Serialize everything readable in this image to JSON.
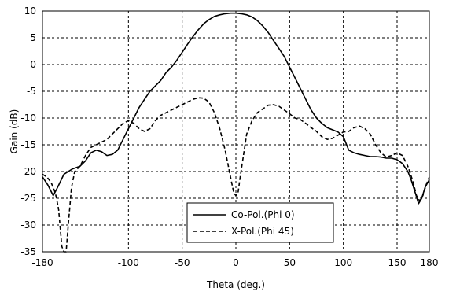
{
  "chart_data": {
    "type": "line",
    "xlabel": "Theta (deg.)",
    "ylabel": "Gain (dB)",
    "xlim": [
      -180,
      180
    ],
    "ylim": [
      -35,
      10
    ],
    "xticks": [
      -180,
      -100,
      -50,
      0,
      50,
      100,
      150,
      180
    ],
    "yticks": [
      10,
      5,
      0,
      -5,
      -10,
      -15,
      -20,
      -25,
      -30,
      -35
    ],
    "xtick_labels": [
      "-180",
      "-100",
      "-50",
      "0",
      "50",
      "100",
      "150",
      "180"
    ],
    "ytick_labels": [
      "10",
      "5",
      "0",
      "-5",
      "-10",
      "-15",
      "-20",
      "-25",
      "-30",
      "-35"
    ],
    "grid": true,
    "legend_position": "bottom-center",
    "series": [
      {
        "name": "Co-Pol.(Phi 0)",
        "style": "solid",
        "color": "#000000",
        "x": [
          -180,
          -175,
          -170,
          -166,
          -160,
          -152,
          -145,
          -140,
          -135,
          -130,
          -125,
          -120,
          -115,
          -110,
          -105,
          -100,
          -95,
          -90,
          -85,
          -80,
          -75,
          -70,
          -65,
          -60,
          -55,
          -50,
          -45,
          -40,
          -35,
          -30,
          -25,
          -20,
          -15,
          -10,
          -5,
          0,
          5,
          10,
          15,
          20,
          25,
          30,
          35,
          40,
          45,
          50,
          55,
          60,
          65,
          70,
          75,
          80,
          85,
          90,
          95,
          100,
          105,
          110,
          115,
          120,
          125,
          130,
          135,
          140,
          145,
          150,
          155,
          160,
          163,
          167,
          170,
          173,
          176,
          180
        ],
        "y": [
          -21,
          -22.5,
          -24.5,
          -23,
          -20.5,
          -19.5,
          -19,
          -18,
          -16.5,
          -16,
          -16.3,
          -17,
          -16.8,
          -16,
          -14,
          -12,
          -10,
          -8,
          -6.5,
          -5,
          -4,
          -3,
          -1.5,
          -0.5,
          0.8,
          2.3,
          3.8,
          5.2,
          6.5,
          7.6,
          8.4,
          9,
          9.3,
          9.5,
          9.6,
          9.6,
          9.5,
          9.3,
          8.9,
          8.2,
          7.2,
          6,
          4.5,
          3,
          1.5,
          -0.5,
          -2.5,
          -4.5,
          -6.5,
          -8.5,
          -10,
          -11,
          -11.8,
          -12.2,
          -12.6,
          -13.5,
          -16,
          -16.5,
          -16.8,
          -17,
          -17.2,
          -17.2,
          -17.3,
          -17.5,
          -17.5,
          -17.8,
          -18.5,
          -20,
          -21.5,
          -24,
          -26,
          -25,
          -23,
          -21.5
        ]
      },
      {
        "name": "X-Pol.(Phi 45)",
        "style": "dashed",
        "color": "#000000",
        "x": [
          -180,
          -176,
          -172,
          -168,
          -165,
          -162,
          -160,
          -158,
          -156,
          -153,
          -150,
          -145,
          -140,
          -135,
          -130,
          -125,
          -120,
          -115,
          -110,
          -105,
          -100,
          -95,
          -90,
          -85,
          -80,
          -75,
          -70,
          -65,
          -60,
          -55,
          -50,
          -45,
          -40,
          -35,
          -30,
          -25,
          -20,
          -15,
          -10,
          -7,
          -4,
          -2,
          0,
          2,
          4,
          7,
          10,
          15,
          20,
          25,
          30,
          35,
          40,
          45,
          50,
          55,
          60,
          65,
          70,
          75,
          80,
          85,
          90,
          95,
          100,
          105,
          110,
          115,
          120,
          125,
          130,
          135,
          140,
          145,
          150,
          155,
          160,
          165,
          168,
          171,
          174,
          177,
          180
        ],
        "y": [
          -20.5,
          -21,
          -22,
          -24,
          -27,
          -34,
          -35,
          -35,
          -30,
          -23,
          -20,
          -19,
          -17,
          -15.5,
          -15,
          -14.5,
          -14,
          -13,
          -12,
          -11,
          -10.5,
          -11,
          -12,
          -12.5,
          -12,
          -10.5,
          -9.5,
          -9,
          -8.5,
          -8,
          -7.5,
          -7,
          -6.5,
          -6.2,
          -6.3,
          -7,
          -9,
          -12,
          -16,
          -19,
          -22,
          -24,
          -24.5,
          -24,
          -21,
          -17,
          -13,
          -10.5,
          -9,
          -8.3,
          -7.6,
          -7.5,
          -7.8,
          -8.5,
          -9.2,
          -10,
          -10.3,
          -11,
          -11.8,
          -12.5,
          -13.5,
          -14,
          -13.8,
          -13.2,
          -12.6,
          -12.5,
          -11.8,
          -11.5,
          -12,
          -13,
          -15,
          -16.5,
          -17.3,
          -17,
          -16.5,
          -17,
          -19,
          -22,
          -24.5,
          -25.5,
          -24.5,
          -22.5,
          -21
        ]
      }
    ]
  }
}
